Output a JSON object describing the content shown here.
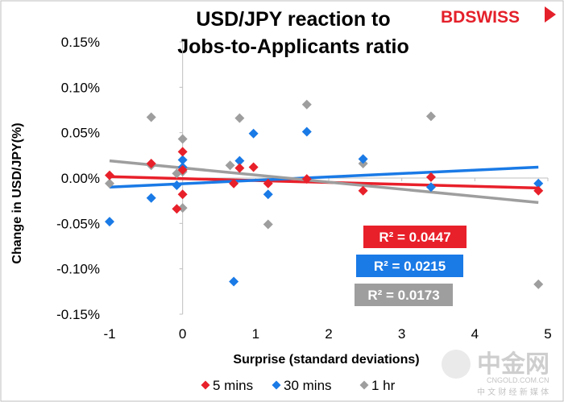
{
  "brand": {
    "text": "BDSWISS"
  },
  "watermark": {
    "big": "中金网",
    "url": "CNGOLD.COM.CN",
    "cn": "中 文 财 经 新 媒 体"
  },
  "chart_data": {
    "type": "scatter",
    "title_lines": [
      "USD/JPY reaction to",
      "Jobs-to-Applicants ratio"
    ],
    "xlabel": "Surprise (standard deviations)",
    "ylabel": "Change in USD/JPY(%)",
    "xlim": [
      -1,
      5
    ],
    "ylim": [
      -0.15,
      0.15
    ],
    "x_ticks": [
      -1,
      0,
      1,
      2,
      3,
      4,
      5
    ],
    "x_tick_labels": [
      "-1",
      "0",
      "1",
      "2",
      "3",
      "4",
      "5"
    ],
    "y_ticks": [
      0.15,
      0.1,
      0.05,
      0.0,
      -0.05,
      -0.1,
      -0.15
    ],
    "y_tick_labels": [
      "0.15%",
      "0.10%",
      "0.05%",
      "0.00%",
      "-0.05%",
      "-0.10%",
      "-0.15%"
    ],
    "grid": false,
    "legend_position": "bottom",
    "series": [
      {
        "name": "5 mins",
        "color": "#e8202a",
        "points": [
          [
            -1.0,
            0.003
          ],
          [
            -0.43,
            0.016
          ],
          [
            -0.08,
            -0.034
          ],
          [
            0.0,
            0.029
          ],
          [
            0.0,
            0.009
          ],
          [
            0.0,
            -0.018
          ],
          [
            0.7,
            -0.006
          ],
          [
            0.78,
            0.011
          ],
          [
            0.97,
            0.012
          ],
          [
            1.17,
            -0.006
          ],
          [
            1.7,
            -0.001
          ],
          [
            2.47,
            -0.014
          ],
          [
            3.4,
            0.001
          ],
          [
            4.87,
            -0.014
          ]
        ],
        "trendline": {
          "x": [
            -1,
            4.87
          ],
          "y": [
            0.0015,
            -0.011
          ]
        },
        "r2": "R² = 0.0447"
      },
      {
        "name": "30 mins",
        "color": "#1a7ae6",
        "points": [
          [
            -1.0,
            -0.048
          ],
          [
            -0.43,
            -0.022
          ],
          [
            -0.08,
            -0.008
          ],
          [
            0.0,
            0.02
          ],
          [
            0.0,
            0.012
          ],
          [
            0.7,
            -0.114
          ],
          [
            0.78,
            0.019
          ],
          [
            0.97,
            0.049
          ],
          [
            1.17,
            -0.018
          ],
          [
            1.7,
            0.051
          ],
          [
            2.47,
            0.021
          ],
          [
            3.4,
            -0.01
          ],
          [
            4.87,
            -0.006
          ]
        ],
        "trendline": {
          "x": [
            -1,
            4.87
          ],
          "y": [
            -0.01,
            0.012
          ]
        },
        "r2": "R² = 0.0215"
      },
      {
        "name": "1 hr",
        "color": "#9e9e9e",
        "points": [
          [
            -1.0,
            -0.006
          ],
          [
            -0.43,
            0.067
          ],
          [
            -0.43,
            0.014
          ],
          [
            -0.08,
            0.005
          ],
          [
            0.0,
            0.043
          ],
          [
            0.0,
            0.007
          ],
          [
            0.0,
            -0.033
          ],
          [
            0.65,
            0.014
          ],
          [
            0.78,
            0.066
          ],
          [
            1.17,
            -0.051
          ],
          [
            1.7,
            0.081
          ],
          [
            2.47,
            0.016
          ],
          [
            3.4,
            0.068
          ],
          [
            4.87,
            -0.117
          ]
        ],
        "trendline": {
          "x": [
            -1,
            4.87
          ],
          "y": [
            0.019,
            -0.027
          ]
        },
        "r2": "R² = 0.0173"
      }
    ]
  }
}
